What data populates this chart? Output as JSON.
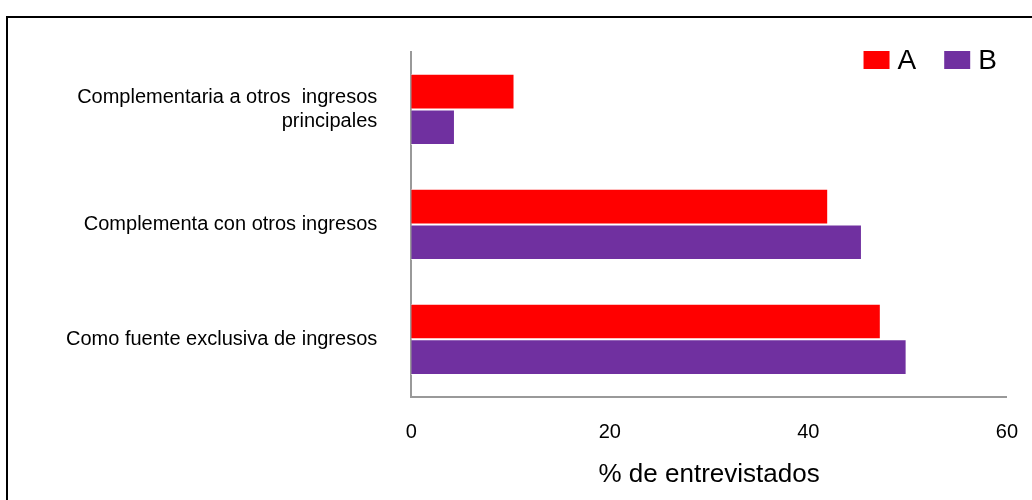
{
  "chart_data": {
    "type": "bar",
    "orientation": "horizontal",
    "xlabel": "% de entrevistados",
    "categories": [
      "Complementaria a otros  ingresos principales",
      "Complementa con otros ingresos",
      "Como fuente exclusiva de ingresos"
    ],
    "series": [
      {
        "name": "A",
        "color": "#ff0000",
        "values": [
          10.4,
          42.0,
          47.3
        ]
      },
      {
        "name": "B",
        "color": "#7030a0",
        "values": [
          4.4,
          45.4,
          49.9
        ]
      }
    ],
    "xlim": [
      0,
      60
    ],
    "xticks": [
      0,
      20,
      40,
      60
    ],
    "grid": false,
    "legend": "top right"
  }
}
